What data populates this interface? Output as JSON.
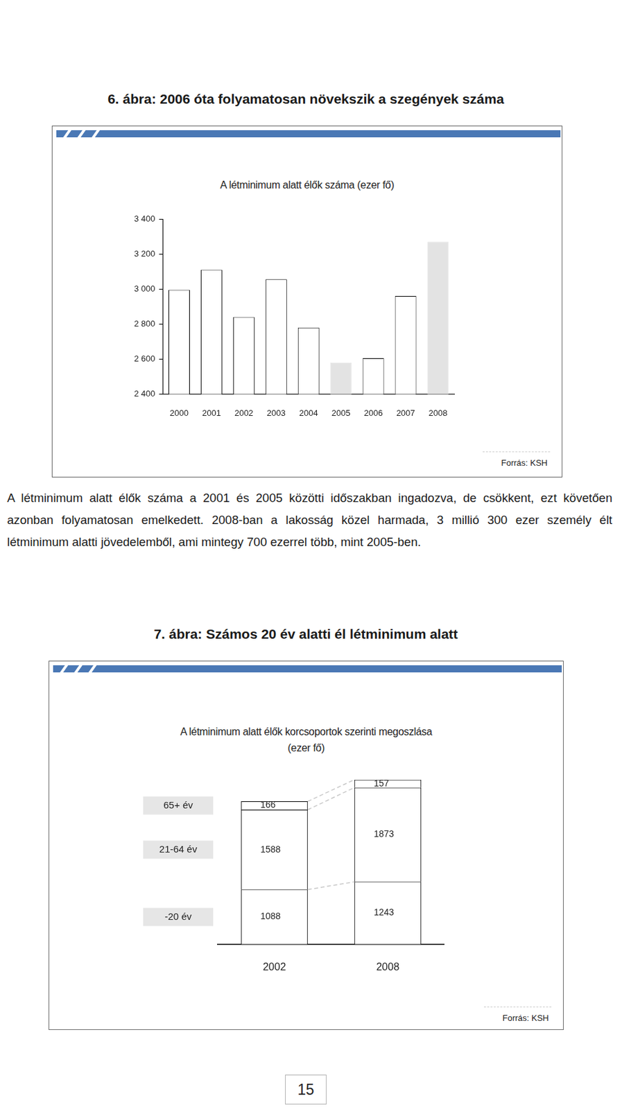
{
  "captions": [
    "6. ábra: 2006 óta folyamatosan növekszik a szegények száma",
    "7. ábra: Számos 20 év alatti él létminimum alatt"
  ],
  "chart_data": [
    {
      "type": "bar",
      "title": "A létminimum alatt élők száma (ezer fő)",
      "categories": [
        "2000",
        "2001",
        "2002",
        "2003",
        "2004",
        "2005",
        "2006",
        "2007",
        "2008"
      ],
      "values": [
        2995,
        3110,
        2840,
        3055,
        2780,
        2580,
        2605,
        2960,
        3270
      ],
      "colors": [
        "#ffffff",
        "#ffffff",
        "#ffffff",
        "#ffffff",
        "#ffffff",
        "#e3e3e3",
        "#ffffff",
        "#ffffff",
        "#e3e3e3"
      ],
      "ylim": [
        2400,
        3400
      ],
      "yticks": [
        {
          "value": 2400,
          "label": "2 400"
        },
        {
          "value": 2600,
          "label": "2 600"
        },
        {
          "value": 2800,
          "label": "2 800"
        },
        {
          "value": 3000,
          "label": "3 000"
        },
        {
          "value": 3200,
          "label": "3 200"
        },
        {
          "value": 3400,
          "label": "3 400"
        }
      ],
      "grid": false,
      "data_labels": false,
      "annotations": [
        "Forrás: KSH"
      ]
    },
    {
      "type": "bar",
      "title": [
        "A létminimum alatt élők korcsoportok szerinti megoszlása",
        "(ezer fő)"
      ],
      "categories": [
        "2002",
        "2008"
      ],
      "series": [
        {
          "name": "-20 év",
          "color": "#ffffff",
          "values": [
            1088,
            1243
          ]
        },
        {
          "name": "21-64 év",
          "color": "#ffffff",
          "values": [
            1588,
            1873
          ]
        },
        {
          "name": "65+ év",
          "color": "#ffffff",
          "values": [
            166,
            157
          ]
        }
      ],
      "stacked": true,
      "data_labels": true,
      "tick_labels": "x",
      "grid": false,
      "annotations": [
        "Forrás: KSH"
      ]
    }
  ],
  "paragraph": "A létminimum alatt élők száma a 2001 és 2005 közötti időszakban ingadozva, de csökkent, ezt követően azonban folyamatosan emelkedett. 2008-ban a lakosság közel harmada, 3 millió 300 ezer személy élt létminimum alatti jövedelemből, ami mintegy 700 ezerrel több, mint 2005-ben.",
  "page_number": 15
}
